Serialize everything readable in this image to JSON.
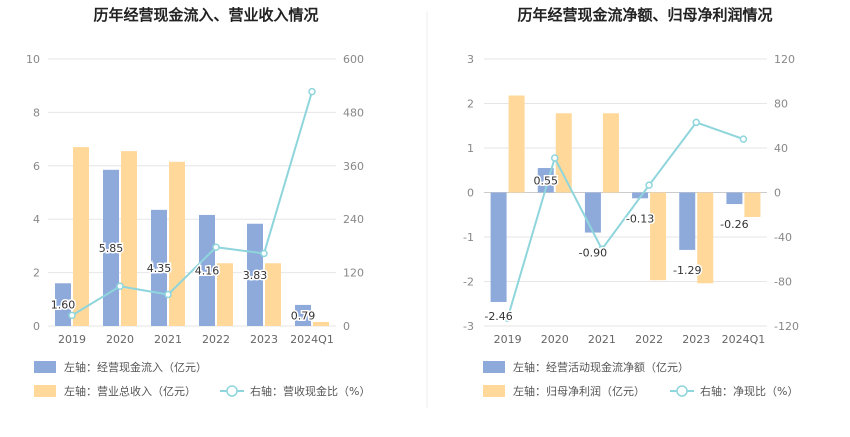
{
  "chart_data": [
    {
      "type": "bar",
      "title": "历年经营现金流入、营业收入情况",
      "categories": [
        "2019",
        "2020",
        "2021",
        "2022",
        "2023",
        "2024Q1"
      ],
      "left_axis": {
        "min": 0,
        "max": 10,
        "ticks": [
          0,
          2,
          4,
          6,
          8,
          10
        ]
      },
      "right_axis": {
        "min": 0,
        "max": 600,
        "ticks": [
          0,
          120,
          240,
          360,
          480,
          600
        ]
      },
      "series": [
        {
          "name": "左轴：经营现金流入（亿元）",
          "type": "bar",
          "axis": "left",
          "color": "#8eaadb",
          "values": [
            1.6,
            5.85,
            4.35,
            4.16,
            3.83,
            0.79
          ],
          "labels": [
            "1.60",
            "5.85",
            "4.35",
            "4.16",
            "3.83",
            "0.79"
          ]
        },
        {
          "name": "左轴：营业总收入（亿元）",
          "type": "bar",
          "axis": "left",
          "color": "#ffd89a",
          "values": [
            6.7,
            6.55,
            6.15,
            2.35,
            2.35,
            0.15
          ]
        },
        {
          "name": "右轴：营收现金比（%）",
          "type": "line",
          "axis": "right",
          "color": "#8ed5dc",
          "values": [
            23.9,
            89.3,
            70.7,
            177.0,
            163.0,
            526.7
          ]
        }
      ]
    },
    {
      "type": "bar",
      "title": "历年经营现金流净额、归母净利润情况",
      "categories": [
        "2019",
        "2020",
        "2021",
        "2022",
        "2023",
        "2024Q1"
      ],
      "left_axis": {
        "min": -3,
        "max": 3,
        "ticks": [
          -3,
          -2,
          -1,
          0,
          1,
          2,
          3
        ]
      },
      "right_axis": {
        "min": -120,
        "max": 120,
        "ticks": [
          -120,
          -80,
          -40,
          0,
          40,
          80,
          120
        ]
      },
      "series": [
        {
          "name": "左轴：经营活动现金流净额（亿元）",
          "type": "bar",
          "axis": "left",
          "color": "#8eaadb",
          "values": [
            -2.46,
            0.55,
            -0.9,
            -0.13,
            -1.29,
            -0.26
          ],
          "labels": [
            "-2.46",
            "0.55",
            "-0.90",
            "-0.13",
            "-1.29",
            "-0.26"
          ]
        },
        {
          "name": "左轴：归母净利润（亿元）",
          "type": "bar",
          "axis": "left",
          "color": "#ffd89a",
          "values": [
            2.18,
            1.78,
            1.78,
            -1.97,
            -2.04,
            -0.55
          ]
        },
        {
          "name": "右轴：净现比（%）",
          "type": "line",
          "axis": "right",
          "color": "#8ed5dc",
          "values": [
            -113,
            31,
            -51,
            6.6,
            63,
            48
          ]
        }
      ]
    }
  ]
}
